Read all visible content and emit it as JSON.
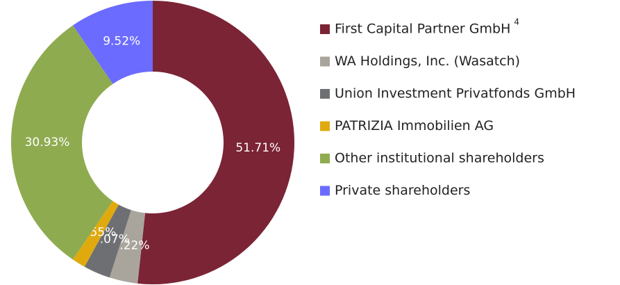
{
  "chart_data": {
    "type": "donut",
    "series": [
      {
        "name": "First Capital Partner GmbH",
        "name_note": "4",
        "color": "#7b2435"
      },
      {
        "name": "WA Holdings, Inc. (Wasatch)",
        "color": "#aaa59c"
      },
      {
        "name": "Union Investment Privatfonds GmbH",
        "color": "#6e6f72"
      },
      {
        "name": "PATRIZIA Immobilien AG",
        "color": "#e0aa0f"
      },
      {
        "name": "Other institutional shareholders",
        "color": "#8fab50"
      },
      {
        "name": "Private shareholders",
        "color": "#6b6bff"
      }
    ],
    "values": [
      51.71,
      3.22,
      3.07,
      1.55,
      30.93,
      9.52
    ],
    "value_labels": [
      "51.71%",
      "3.22%",
      "3.07%",
      "1.55%",
      "30.93%",
      "9.52%"
    ],
    "legend": "right"
  }
}
